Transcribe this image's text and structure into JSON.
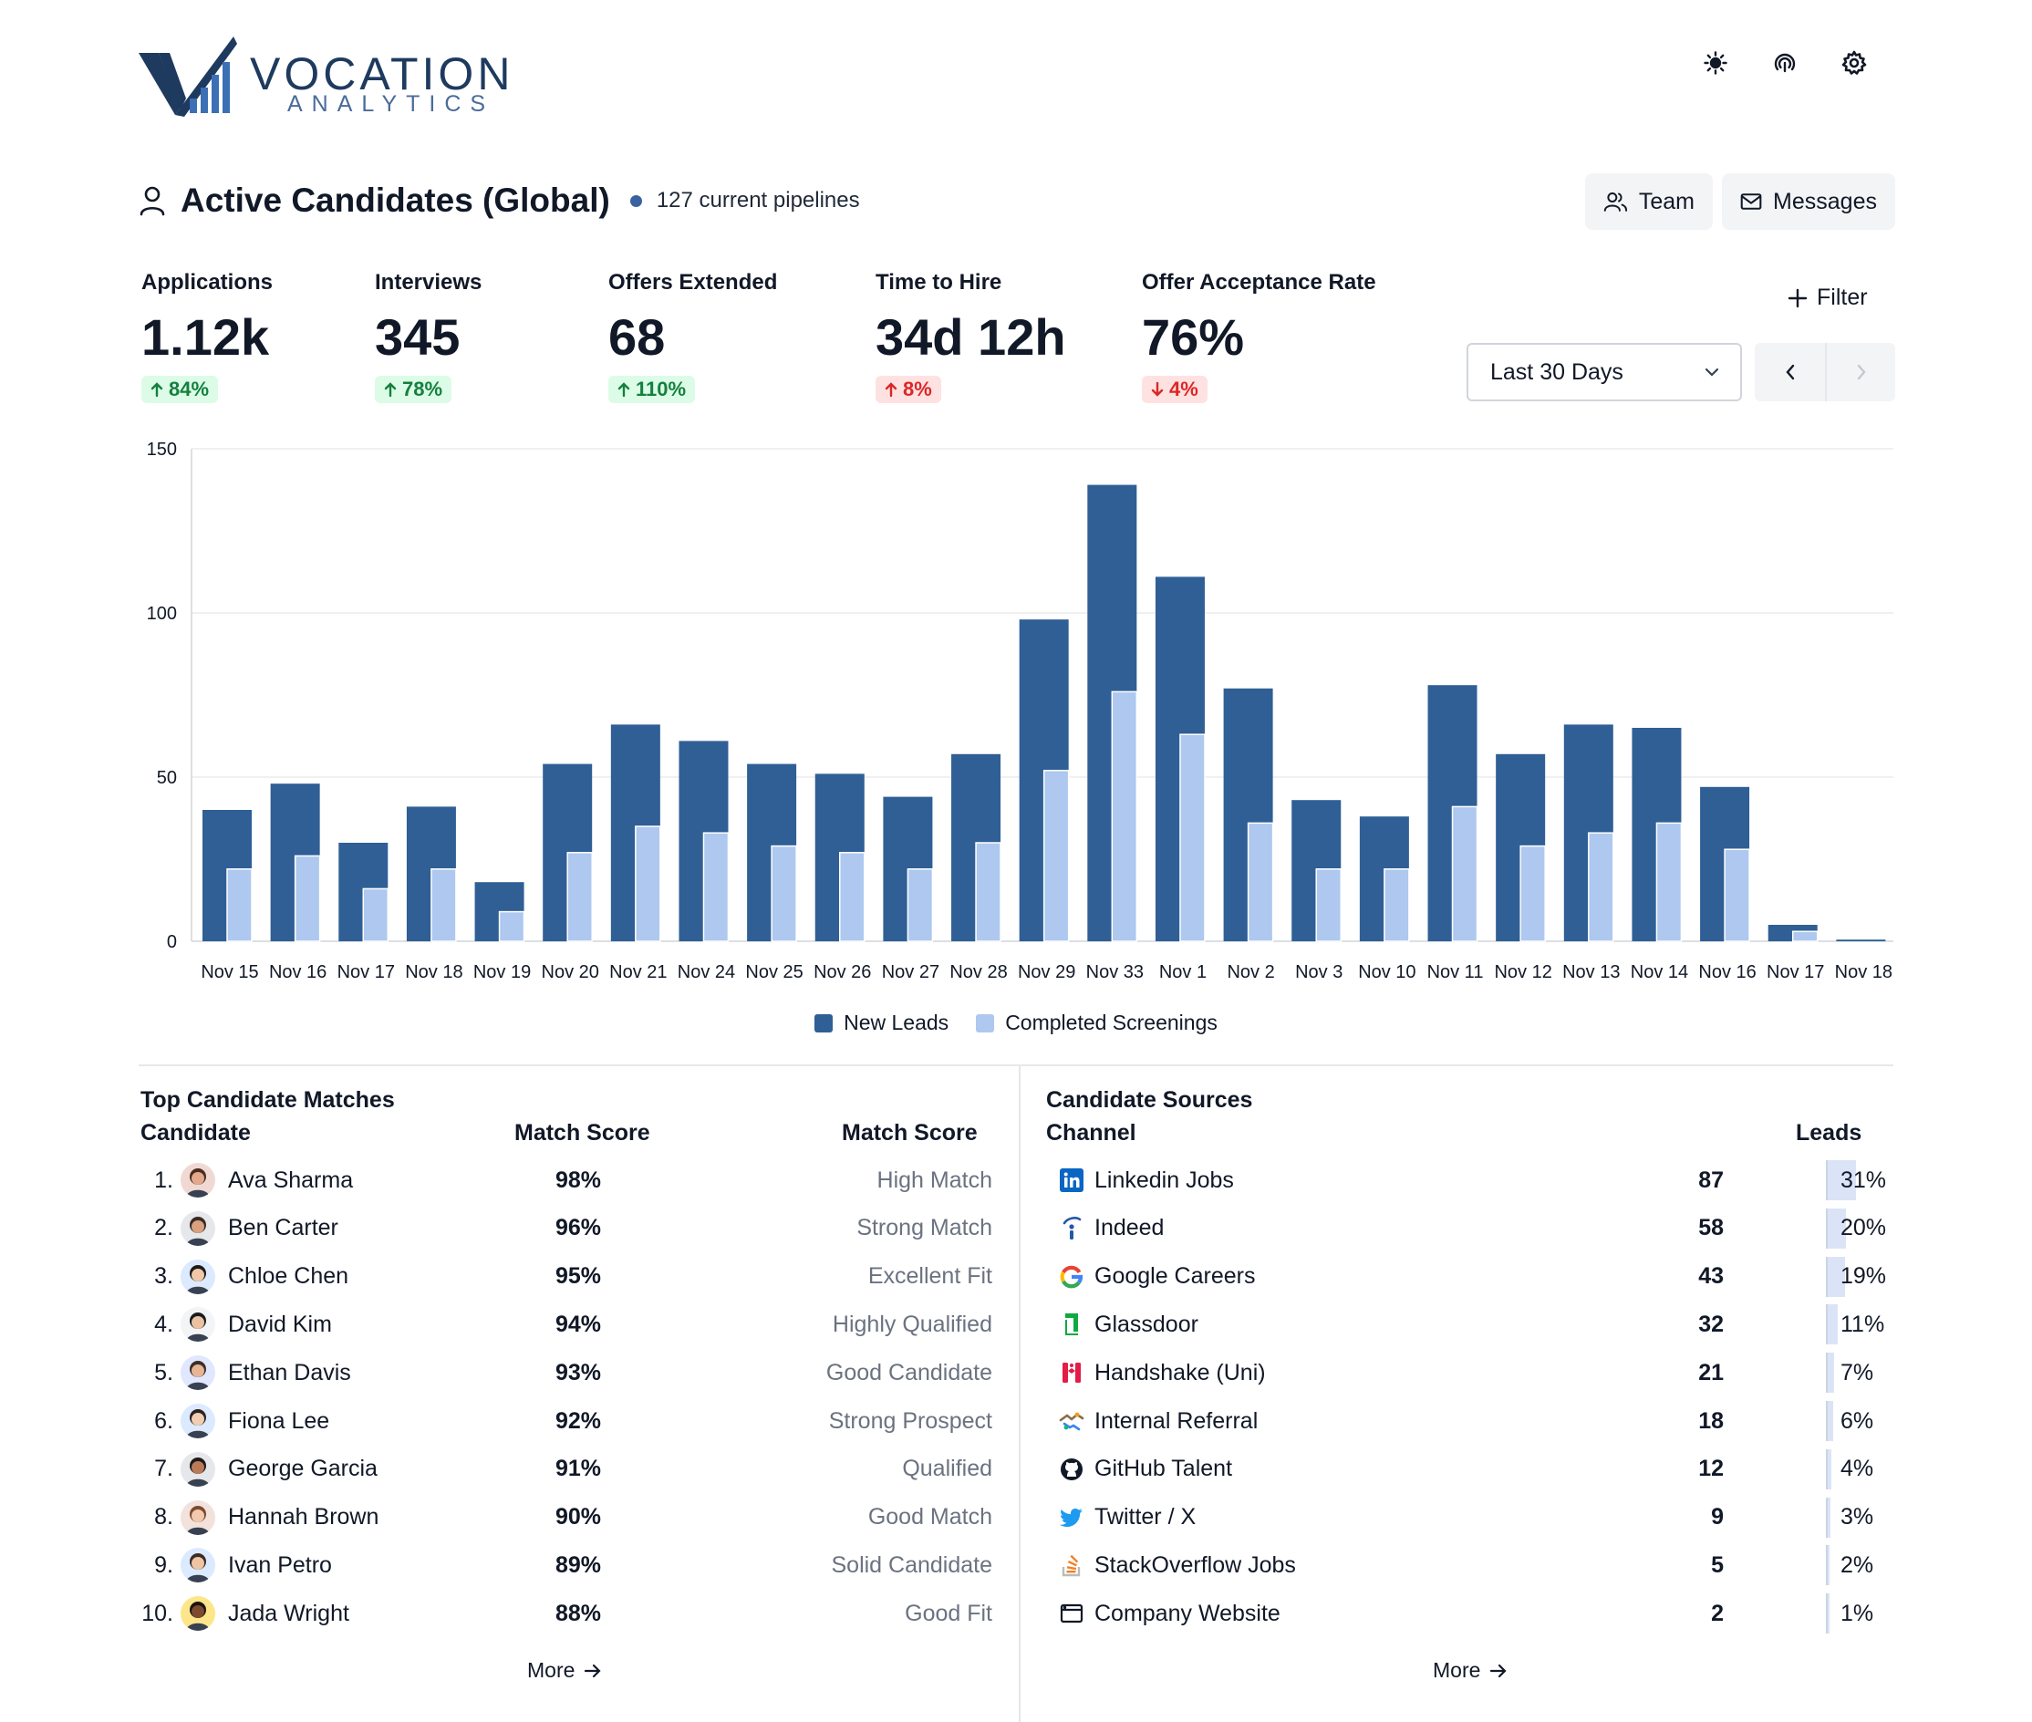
{
  "brand": {
    "word1": "VOCATION",
    "word2": "ANALYTICS",
    "dark": "#1e3a5f",
    "accent": "#3b6fb6"
  },
  "top_icons": [
    "sun-icon",
    "fingerprint-icon",
    "gear-icon"
  ],
  "header": {
    "title": "Active Candidates (Global)",
    "pipelines": "127 current pipelines",
    "team_label": "Team",
    "messages_label": "Messages"
  },
  "kpis": [
    {
      "label": "Applications",
      "value": "1.12k",
      "delta": "84%",
      "direction": "up",
      "status": "good"
    },
    {
      "label": "Interviews",
      "value": "345",
      "delta": "78%",
      "direction": "up",
      "status": "good"
    },
    {
      "label": "Offers Extended",
      "value": "68",
      "delta": "110%",
      "direction": "up",
      "status": "good"
    },
    {
      "label": "Time to Hire",
      "value": "34d 12h",
      "delta": "8%",
      "direction": "up",
      "status": "bad"
    },
    {
      "label": "Offer Acceptance Rate",
      "value": "76%",
      "delta": "4%",
      "direction": "down",
      "status": "bad"
    }
  ],
  "controls": {
    "filter_label": "Filter",
    "range_selected": "Last 30 Days"
  },
  "chart_data": {
    "type": "bar",
    "categories": [
      "Nov 15",
      "Nov 16",
      "Nov 17",
      "Nov 18",
      "Nov 19",
      "Nov 20",
      "Nov 21",
      "Nov 24",
      "Nov 25",
      "Nov 26",
      "Nov 27",
      "Nov 28",
      "Nov 29",
      "Nov 33",
      "Nov 1",
      "Nov 2",
      "Nov 3",
      "Nov 10",
      "Nov 11",
      "Nov 12",
      "Nov 13",
      "Nov 14",
      "Nov 16",
      "Nov 17",
      "Nov 18"
    ],
    "series": [
      {
        "name": "New Leads",
        "color": "#2f5f95",
        "values": [
          40,
          48,
          30,
          41,
          18,
          54,
          66,
          61,
          54,
          51,
          44,
          57,
          98,
          139,
          111,
          77,
          43,
          38,
          78,
          57,
          66,
          65,
          47,
          5,
          0.5
        ]
      },
      {
        "name": "Completed Screenings",
        "color": "#aec8ef",
        "values": [
          22,
          26,
          16,
          22,
          9,
          27,
          35,
          33,
          29,
          27,
          22,
          30,
          52,
          76,
          63,
          36,
          22,
          22,
          41,
          29,
          33,
          36,
          28,
          3,
          0
        ]
      }
    ],
    "yticks": [
      0,
      50,
      100,
      150
    ],
    "ylim": [
      0,
      150
    ],
    "grid": true,
    "legend_position": "bottom-center"
  },
  "candidates": {
    "title": "Top Candidate Matches",
    "col_candidate": "Candidate",
    "col_score": "Match Score",
    "col_tag": "Match Score",
    "more_label": "More",
    "rows": [
      {
        "rank": "1.",
        "name": "Ava Sharma",
        "score": "98%",
        "tag": "High Match",
        "skin": "#e2a98c",
        "hair": "#4a2b1e",
        "bg": "#f1d9d3"
      },
      {
        "rank": "2.",
        "name": "Ben Carter",
        "score": "96%",
        "tag": "Strong Match",
        "skin": "#d9a07f",
        "hair": "#3b2a22",
        "bg": "#e5e7eb"
      },
      {
        "rank": "3.",
        "name": "Chloe Chen",
        "score": "95%",
        "tag": "Excellent Fit",
        "skin": "#f0c8a8",
        "hair": "#1f1a1a",
        "bg": "#dbeafe"
      },
      {
        "rank": "4.",
        "name": "David Kim",
        "score": "94%",
        "tag": "Highly Qualified",
        "skin": "#eac2a2",
        "hair": "#1b1b1b",
        "bg": "#f3f4f6"
      },
      {
        "rank": "5.",
        "name": "Ethan Davis",
        "score": "93%",
        "tag": "Good Candidate",
        "skin": "#e6b594",
        "hair": "#3d2e25",
        "bg": "#e0e7ff"
      },
      {
        "rank": "6.",
        "name": "Fiona Lee",
        "score": "92%",
        "tag": "Strong Prospect",
        "skin": "#f2cdb1",
        "hair": "#2b2220",
        "bg": "#dbeafe"
      },
      {
        "rank": "7.",
        "name": "George Garcia",
        "score": "91%",
        "tag": "Qualified",
        "skin": "#b87a58",
        "hair": "#1f1a17",
        "bg": "#e5e7eb"
      },
      {
        "rank": "8.",
        "name": "Hannah Brown",
        "score": "90%",
        "tag": "Good Match",
        "skin": "#f2c9ad",
        "hair": "#7a4a2e",
        "bg": "#f3e1dc"
      },
      {
        "rank": "9.",
        "name": "Ivan Petro",
        "score": "89%",
        "tag": "Solid Candidate",
        "skin": "#efc4a3",
        "hair": "#3a2c24",
        "bg": "#dbeafe"
      },
      {
        "rank": "10.",
        "name": "Jada Wright",
        "score": "88%",
        "tag": "Good Fit",
        "skin": "#7b4a2f",
        "hair": "#1c1412",
        "bg": "#fde68a"
      }
    ]
  },
  "sources": {
    "title": "Candidate Sources",
    "col_channel": "Channel",
    "col_leads": "Leads",
    "more_label": "More",
    "rows": [
      {
        "name": "Linkedin Jobs",
        "leads": "87",
        "pct": "31%",
        "share": 0.31,
        "icon": "linkedin-icon"
      },
      {
        "name": "Indeed",
        "leads": "58",
        "pct": "20%",
        "share": 0.2,
        "icon": "indeed-icon"
      },
      {
        "name": "Google Careers",
        "leads": "43",
        "pct": "19%",
        "share": 0.19,
        "icon": "google-icon"
      },
      {
        "name": "Glassdoor",
        "leads": "32",
        "pct": "11%",
        "share": 0.11,
        "icon": "glassdoor-icon"
      },
      {
        "name": "Handshake (Uni)",
        "leads": "21",
        "pct": "7%",
        "share": 0.07,
        "icon": "handshake-icon"
      },
      {
        "name": "Internal Referral",
        "leads": "18",
        "pct": "6%",
        "share": 0.06,
        "icon": "referral-icon"
      },
      {
        "name": "GitHub Talent",
        "leads": "12",
        "pct": "4%",
        "share": 0.04,
        "icon": "github-icon"
      },
      {
        "name": "Twitter / X",
        "leads": "9",
        "pct": "3%",
        "share": 0.03,
        "icon": "twitter-icon"
      },
      {
        "name": "StackOverflow Jobs",
        "leads": "5",
        "pct": "2%",
        "share": 0.02,
        "icon": "stackoverflow-icon"
      },
      {
        "name": "Company Website",
        "leads": "2",
        "pct": "1%",
        "share": 0.01,
        "icon": "browser-icon"
      }
    ]
  }
}
